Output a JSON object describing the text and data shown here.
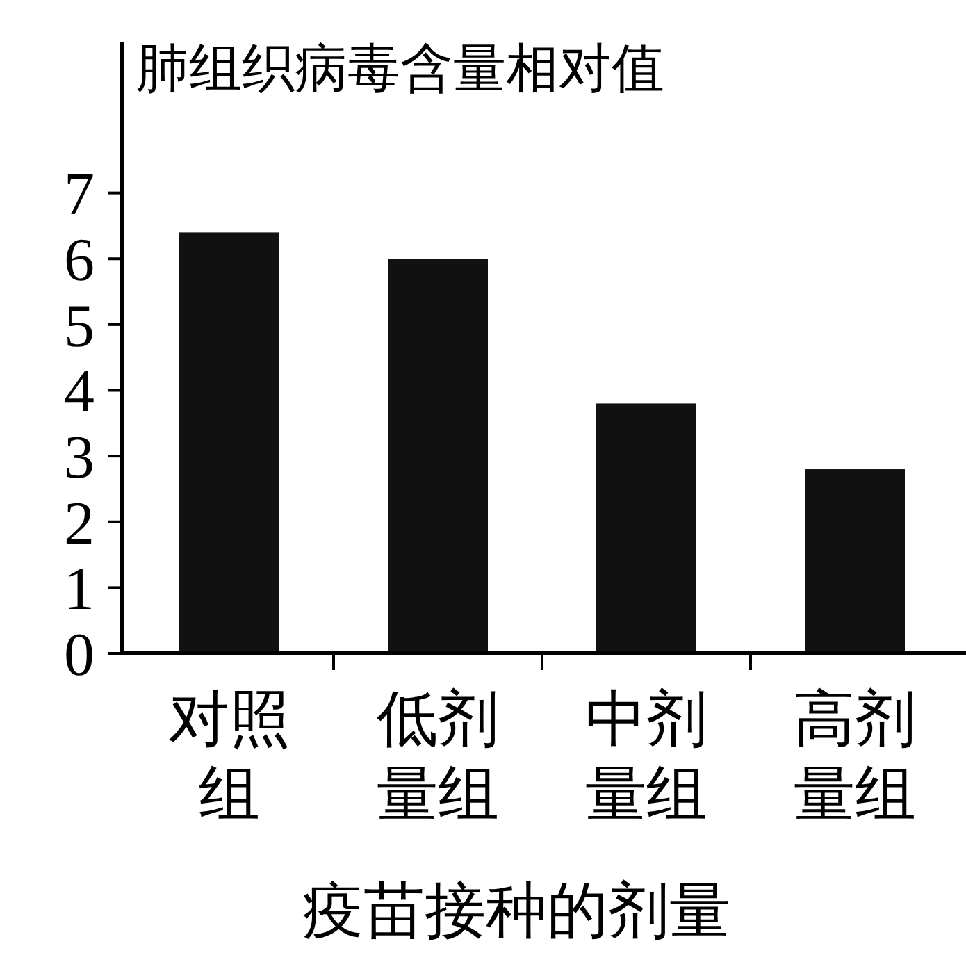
{
  "chart_data": {
    "type": "bar",
    "title": "肺组织病毒含量相对值",
    "xlabel": "疫苗接种的剂量",
    "categories": [
      "对照组",
      "低剂量组",
      "中剂量组",
      "高剂量组"
    ],
    "values": [
      6.4,
      6.0,
      3.8,
      2.8
    ],
    "color": "#111111",
    "ylim": [
      0,
      9.3
    ],
    "yticks": [
      0,
      1,
      2,
      3,
      4,
      5,
      6,
      7
    ],
    "grid": false
  }
}
